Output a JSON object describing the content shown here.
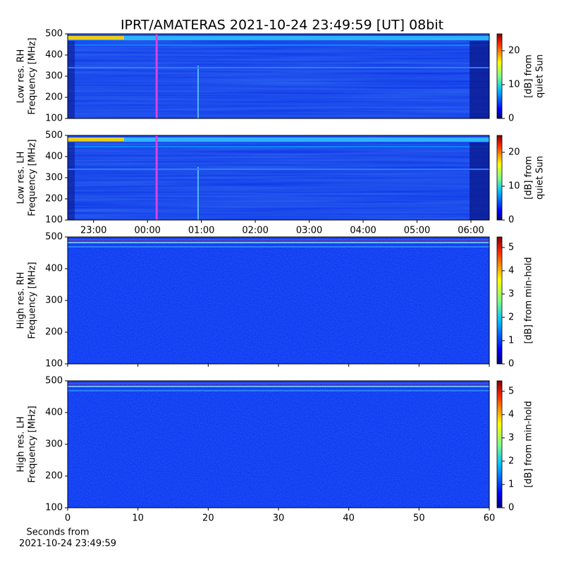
{
  "title": "IPRT/AMATERAS 2021-10-24 23:49:59 [UT]   08bit",
  "chart_data": [
    {
      "type": "spectrogram",
      "ylabel": [
        "Low res. RH",
        "Frequency [MHz]"
      ],
      "ylim": [
        100,
        500
      ],
      "yticks": [
        100,
        200,
        300,
        400,
        500
      ],
      "xlim": [
        22.52,
        30.34
      ],
      "vline": 24.17,
      "vline_color": "#e040e0",
      "colorbar": {
        "label": [
          "[dB] from",
          "quiet Sun"
        ],
        "lim": [
          0,
          25
        ],
        "ticks": [
          0,
          10,
          20
        ]
      }
    },
    {
      "type": "spectrogram",
      "ylabel": [
        "Low res. LH",
        "Frequency [MHz]"
      ],
      "ylim": [
        100,
        500
      ],
      "yticks": [
        100,
        200,
        300,
        400,
        500
      ],
      "xlim": [
        22.52,
        30.34
      ],
      "vline": 24.17,
      "vline_color": "#e040e0",
      "xticks": [
        {
          "value": 23,
          "label": "23:00"
        },
        {
          "value": 24,
          "label": "00:00"
        },
        {
          "value": 25,
          "label": "01:00"
        },
        {
          "value": 26,
          "label": "02:00"
        },
        {
          "value": 27,
          "label": "03:00"
        },
        {
          "value": 28,
          "label": "04:00"
        },
        {
          "value": 29,
          "label": "05:00"
        },
        {
          "value": 30,
          "label": "06:00"
        }
      ],
      "colorbar": {
        "label": [
          "[dB] from",
          "quiet Sun"
        ],
        "lim": [
          0,
          25
        ],
        "ticks": [
          0,
          10,
          20
        ]
      }
    },
    {
      "type": "spectrogram",
      "ylabel": [
        "High res. RH",
        "Frequency [MHz]"
      ],
      "ylim": [
        100,
        500
      ],
      "yticks": [
        100,
        200,
        300,
        400,
        500
      ],
      "xlim": [
        0,
        60
      ],
      "xticks": [
        0,
        10,
        20,
        30,
        40,
        50,
        60
      ],
      "xtick_labels": false,
      "colorbar": {
        "label": [
          "[dB] from min-hold"
        ],
        "lim": [
          0,
          5.45
        ],
        "ticks": [
          0,
          1,
          2,
          3,
          4,
          5
        ]
      }
    },
    {
      "type": "spectrogram",
      "ylabel": [
        "High res. LH",
        "Frequency [MHz]"
      ],
      "ylim": [
        100,
        500
      ],
      "yticks": [
        100,
        200,
        300,
        400,
        500
      ],
      "xlim": [
        0,
        60
      ],
      "xticks": [
        0,
        10,
        20,
        30,
        40,
        50,
        60
      ],
      "xlabel": [
        "Seconds from",
        "2021-10-24 23:49:59"
      ],
      "colorbar": {
        "label": [
          "[dB] from min-hold"
        ],
        "lim": [
          0,
          5.45
        ],
        "ticks": [
          0,
          1,
          2,
          3,
          4,
          5
        ]
      }
    }
  ]
}
